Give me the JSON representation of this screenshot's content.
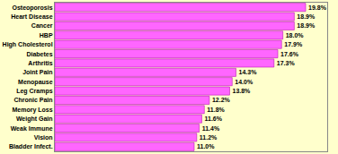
{
  "chart_data": {
    "type": "bar",
    "orientation": "horizontal",
    "categories": [
      "Bladder Infect.",
      "Vision",
      "Weak Immune",
      "Weight Gain",
      "Memory Loss",
      "Chronic Pain",
      "Leg Cramps",
      "Menopause",
      "Joint Pain",
      "Arthritis",
      "Diabetes",
      "High Cholesterol",
      "HBP",
      "Cancer",
      "Heart Disease",
      "Osteoporosis"
    ],
    "values": [
      11.0,
      11.2,
      11.4,
      11.6,
      11.8,
      12.2,
      13.8,
      14.0,
      14.3,
      17.3,
      17.6,
      17.9,
      18.0,
      18.9,
      18.9,
      19.8
    ],
    "value_labels": [
      "11.0%",
      "11.2%",
      "11.4%",
      "11.6%",
      "11.8%",
      "12.2%",
      "13.8%",
      "14.0%",
      "14.3%",
      "17.3%",
      "17.6%",
      "17.9%",
      "18.0%",
      "18.9%",
      "18.9%",
      "19.8%"
    ],
    "data_labels": true,
    "color": "#ff66ff",
    "xlim": [
      0,
      21.5
    ],
    "tick_labels": "y",
    "grid": false
  }
}
